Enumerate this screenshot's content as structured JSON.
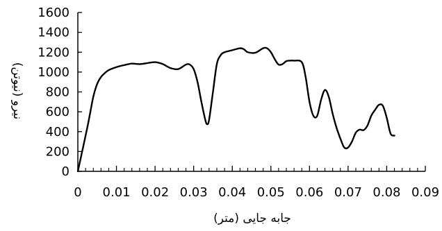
{
  "chart_data": {
    "type": "line",
    "title": "",
    "xlabel": "جابه جایی (متر)",
    "ylabel": "نیرو (نیوتن)",
    "xlim": [
      0,
      0.09
    ],
    "ylim": [
      0,
      1600
    ],
    "x_ticks": [
      "0",
      "0.01",
      "0.02",
      "0.03",
      "0.04",
      "0.05",
      "0.06",
      "0.07",
      "0.08",
      "0.09"
    ],
    "y_ticks": [
      "0",
      "200",
      "400",
      "600",
      "800",
      "1000",
      "1200",
      "1400",
      "1600"
    ],
    "grid": false,
    "legend": "none",
    "series": [
      {
        "color": "#000000",
        "x": [
          0,
          0.0025,
          0.004,
          0.005,
          0.006,
          0.007,
          0.008,
          0.01,
          0.012,
          0.014,
          0.016,
          0.018,
          0.02,
          0.022,
          0.024,
          0.026,
          0.028,
          0.029,
          0.03,
          0.031,
          0.032,
          0.033,
          0.0335,
          0.034,
          0.035,
          0.036,
          0.037,
          0.038,
          0.04,
          0.042,
          0.043,
          0.044,
          0.046,
          0.048,
          0.049,
          0.05,
          0.051,
          0.052,
          0.053,
          0.054,
          0.055,
          0.056,
          0.058,
          0.059,
          0.06,
          0.061,
          0.062,
          0.063,
          0.064,
          0.065,
          0.066,
          0.067,
          0.068,
          0.069,
          0.07,
          0.071,
          0.072,
          0.073,
          0.074,
          0.075,
          0.076,
          0.077,
          0.078,
          0.079,
          0.08,
          0.081,
          0.082
        ],
        "y": [
          0,
          450,
          750,
          880,
          950,
          990,
          1020,
          1050,
          1070,
          1085,
          1080,
          1090,
          1100,
          1080,
          1040,
          1030,
          1075,
          1075,
          1030,
          900,
          700,
          520,
          475,
          520,
          800,
          1080,
          1170,
          1200,
          1220,
          1240,
          1230,
          1200,
          1195,
          1240,
          1240,
          1200,
          1130,
          1075,
          1080,
          1110,
          1115,
          1115,
          1100,
          950,
          700,
          560,
          560,
          720,
          820,
          750,
          580,
          440,
          330,
          240,
          240,
          300,
          390,
          420,
          415,
          460,
          560,
          620,
          670,
          660,
          540,
          380,
          360
        ]
      }
    ]
  }
}
